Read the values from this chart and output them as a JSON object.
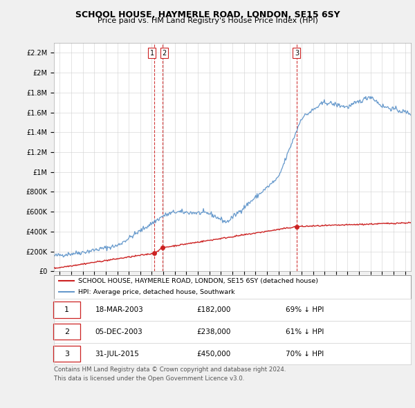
{
  "title1": "SCHOOL HOUSE, HAYMERLE ROAD, LONDON, SE15 6SY",
  "title2": "Price paid vs. HM Land Registry's House Price Index (HPI)",
  "legend_line1": "SCHOOL HOUSE, HAYMERLE ROAD, LONDON, SE15 6SY (detached house)",
  "legend_line2": "HPI: Average price, detached house, Southwark",
  "transactions": [
    {
      "label": "1",
      "date": "18-MAR-2003",
      "date_num": 2003.21,
      "price": 182000,
      "pct": "69%"
    },
    {
      "label": "2",
      "date": "05-DEC-2003",
      "date_num": 2003.92,
      "price": 238000,
      "pct": "61%"
    },
    {
      "label": "3",
      "date": "31-JUL-2015",
      "date_num": 2015.58,
      "price": 450000,
      "pct": "70%"
    }
  ],
  "footnote1": "Contains HM Land Registry data © Crown copyright and database right 2024.",
  "footnote2": "This data is licensed under the Open Government Licence v3.0.",
  "hpi_color": "#6699cc",
  "price_color": "#cc2222",
  "vline_color": "#cc2222",
  "background_color": "#f0f0f0",
  "plot_bg_color": "#ffffff",
  "ylim_max": 2300000,
  "xmin": 1994.5,
  "xmax": 2025.5
}
